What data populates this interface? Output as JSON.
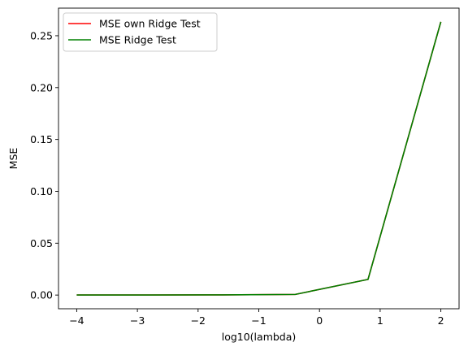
{
  "chart_data": {
    "type": "line",
    "title": "",
    "xlabel": "log10(lambda)",
    "ylabel": "MSE",
    "xlim": [
      -4.3,
      2.3
    ],
    "ylim": [
      -0.0132,
      0.2766
    ],
    "xticks": [
      -4,
      -3,
      -2,
      -1,
      0,
      1,
      2
    ],
    "xtick_labels": [
      "−4",
      "−3",
      "−2",
      "−1",
      "0",
      "1",
      "2"
    ],
    "yticks": [
      0.0,
      0.05,
      0.1,
      0.15,
      0.2,
      0.25
    ],
    "ytick_labels": [
      "0.00",
      "0.05",
      "0.10",
      "0.15",
      "0.20",
      "0.25"
    ],
    "grid": false,
    "legend": "top-left",
    "x": [
      -4.0,
      -2.8,
      -1.6,
      -0.4,
      0.8,
      2.0
    ],
    "series": [
      {
        "name": "MSE own Ridge Test",
        "color": "#ff0000",
        "values": [
          0.0001,
          0.0001,
          0.0002,
          0.0006,
          0.0151,
          0.2634
        ]
      },
      {
        "name": "MSE Ridge Test",
        "color": "#008000",
        "values": [
          0.0001,
          0.0001,
          0.0002,
          0.0006,
          0.0151,
          0.2634
        ]
      }
    ]
  }
}
